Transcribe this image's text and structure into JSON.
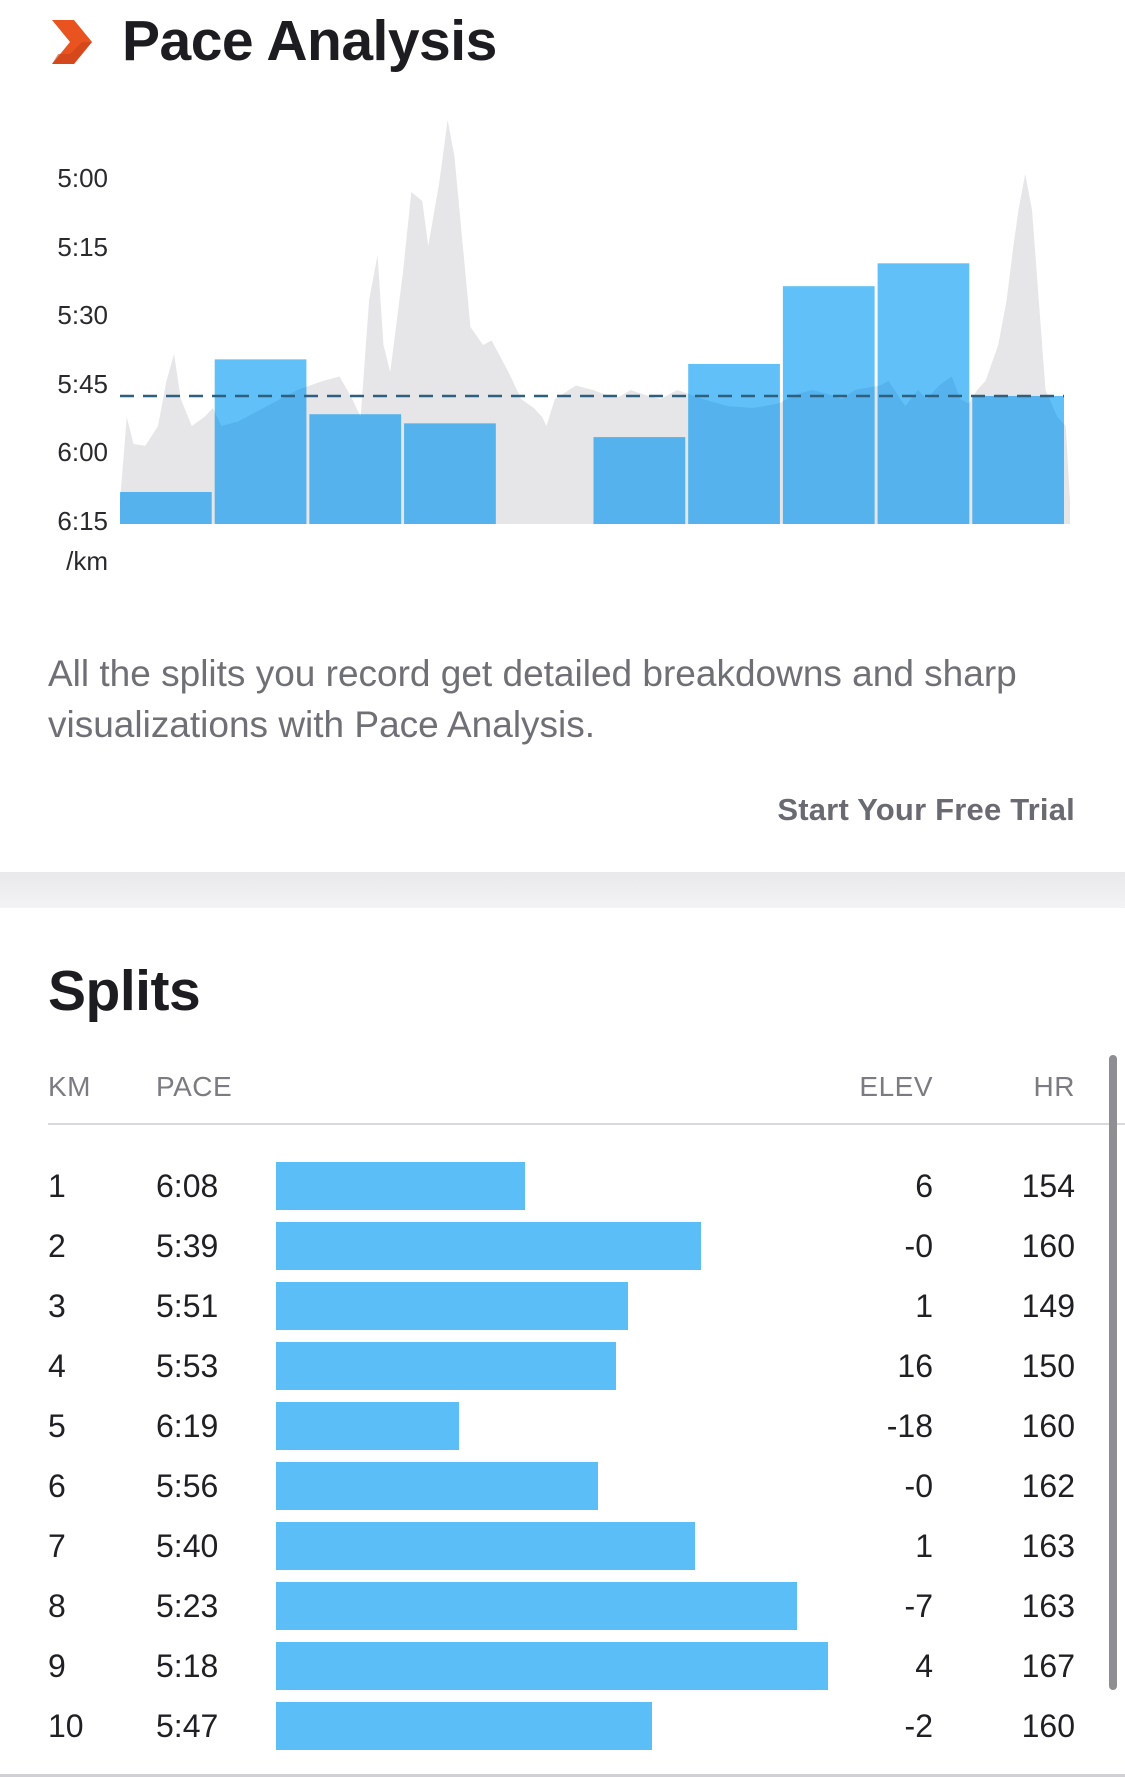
{
  "header": {
    "title": "Pace Analysis",
    "icon": "chevron-right-brand-icon",
    "accent_color": "#e8531f"
  },
  "chart_data": {
    "type": "bar",
    "title": "",
    "unit_label": "/km",
    "y_ticks": [
      "5:00",
      "5:15",
      "5:30",
      "5:45",
      "6:00",
      "6:15"
    ],
    "categories": [
      "1",
      "2",
      "3",
      "4",
      "5",
      "6",
      "7",
      "8",
      "9",
      "10"
    ],
    "values": [
      "6:08",
      "5:39",
      "5:51",
      "5:53",
      "6:19",
      "5:56",
      "5:40",
      "5:23",
      "5:18",
      "5:47"
    ],
    "y_direction": "inverted (faster pace higher)",
    "average_line": "5:47",
    "average_line_style": "dashed",
    "bar_color": "#5bbef7",
    "elevation_profile_color": "#e6e6e8",
    "grid": false
  },
  "description": "All the splits you record get detailed breakdowns and sharp visualizations with Pace Analysis.",
  "cta": {
    "label": "Start Your Free Trial"
  },
  "splits": {
    "title": "Splits",
    "columns": {
      "km": "KM",
      "pace": "PACE",
      "elev": "ELEV",
      "hr": "HR"
    },
    "rows": [
      {
        "km": "1",
        "pace": "6:08",
        "elev": "6",
        "hr": "154"
      },
      {
        "km": "2",
        "pace": "5:39",
        "elev": "-0",
        "hr": "160"
      },
      {
        "km": "3",
        "pace": "5:51",
        "elev": "1",
        "hr": "149"
      },
      {
        "km": "4",
        "pace": "5:53",
        "elev": "16",
        "hr": "150"
      },
      {
        "km": "5",
        "pace": "6:19",
        "elev": "-18",
        "hr": "160"
      },
      {
        "km": "6",
        "pace": "5:56",
        "elev": "-0",
        "hr": "162"
      },
      {
        "km": "7",
        "pace": "5:40",
        "elev": "1",
        "hr": "163"
      },
      {
        "km": "8",
        "pace": "5:23",
        "elev": "-7",
        "hr": "163"
      },
      {
        "km": "9",
        "pace": "5:18",
        "elev": "4",
        "hr": "167"
      },
      {
        "km": "10",
        "pace": "5:47",
        "elev": "-2",
        "hr": "160"
      }
    ]
  }
}
